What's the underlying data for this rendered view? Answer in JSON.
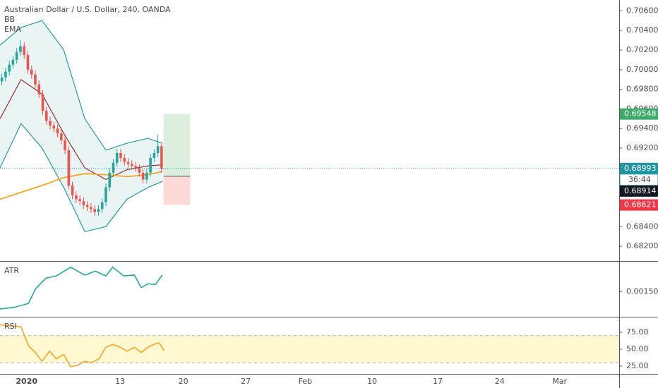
{
  "chart_data": [
    {
      "type": "candlestick",
      "title": "Australian Dollar / U.S. Dollar, 240, OANDA",
      "xlim": [
        0,
        100
      ],
      "xticks": [
        {
          "value": 4.3,
          "label": "2020"
        },
        {
          "value": 19.4,
          "label": "13"
        },
        {
          "value": 29.6,
          "label": "20"
        },
        {
          "value": 39.7,
          "label": "27"
        },
        {
          "value": 49.3,
          "label": "Feb"
        },
        {
          "value": 60.1,
          "label": "10"
        },
        {
          "value": 70.7,
          "label": "17"
        },
        {
          "value": 80.7,
          "label": "24"
        },
        {
          "value": 90.4,
          "label": "Mar"
        }
      ],
      "ylim": [
        0.6805,
        0.7071
      ],
      "yticks": [
        {
          "value": 0.682,
          "label": "0.68200"
        },
        {
          "value": 0.684,
          "label": "0.68400"
        },
        {
          "value": 0.686,
          "label": "0.68600"
        },
        {
          "value": 0.688,
          "label": "0.68800"
        },
        {
          "value": 0.69,
          "label": "0.69000"
        },
        {
          "value": 0.692,
          "label": "0.69200"
        },
        {
          "value": 0.694,
          "label": "0.69400"
        },
        {
          "value": 0.696,
          "label": "0.69600"
        },
        {
          "value": 0.698,
          "label": "0.69800"
        },
        {
          "value": 0.7,
          "label": "0.70000"
        },
        {
          "value": 0.702,
          "label": "0.70200"
        },
        {
          "value": 0.704,
          "label": "0.70400"
        },
        {
          "value": 0.706,
          "label": "0.70600"
        }
      ],
      "grid": true,
      "up_color": "#26a69a",
      "down_color": "#ef5350",
      "x": [
        0.3,
        0.9,
        1.5,
        2.1,
        2.7,
        3.3,
        3.9,
        4.5,
        5.1,
        5.7,
        6.3,
        6.9,
        7.5,
        8.1,
        8.7,
        9.3,
        9.9,
        10.5,
        11.1,
        11.7,
        12.3,
        12.9,
        13.5,
        14.1,
        14.7,
        15.3,
        15.9,
        16.5,
        17.1,
        17.7,
        18.3,
        18.9,
        19.5,
        20.1,
        20.7,
        21.3,
        21.9,
        22.5,
        23.1,
        23.7,
        24.3,
        24.9,
        25.5,
        26.1
      ],
      "open": [
        0.6988,
        0.6992,
        0.6998,
        0.7005,
        0.701,
        0.7018,
        0.7024,
        0.7015,
        0.7,
        0.6995,
        0.6985,
        0.6975,
        0.6958,
        0.6948,
        0.6943,
        0.694,
        0.6935,
        0.6928,
        0.6918,
        0.6882,
        0.6872,
        0.6868,
        0.6866,
        0.6862,
        0.686,
        0.6858,
        0.6855,
        0.6858,
        0.6865,
        0.688,
        0.6895,
        0.6905,
        0.6915,
        0.691,
        0.6906,
        0.6904,
        0.6902,
        0.69,
        0.6895,
        0.6888,
        0.6895,
        0.691,
        0.6915,
        0.6922
      ],
      "high": [
        0.6996,
        0.7002,
        0.7009,
        0.7014,
        0.7022,
        0.703,
        0.7028,
        0.7019,
        0.7004,
        0.6999,
        0.6989,
        0.6979,
        0.6962,
        0.6952,
        0.6947,
        0.6944,
        0.6939,
        0.6932,
        0.6922,
        0.6886,
        0.6876,
        0.6872,
        0.687,
        0.6866,
        0.6864,
        0.6862,
        0.6862,
        0.6869,
        0.6884,
        0.6899,
        0.6909,
        0.6919,
        0.6919,
        0.6914,
        0.691,
        0.6908,
        0.6906,
        0.6904,
        0.6899,
        0.6899,
        0.6914,
        0.6919,
        0.6934,
        0.6926
      ],
      "low": [
        0.6984,
        0.6988,
        0.6994,
        0.7001,
        0.7006,
        0.7014,
        0.7011,
        0.6996,
        0.6991,
        0.6981,
        0.6971,
        0.6954,
        0.6944,
        0.6939,
        0.6936,
        0.6931,
        0.6924,
        0.6914,
        0.6878,
        0.6868,
        0.6864,
        0.6862,
        0.6858,
        0.6856,
        0.6854,
        0.6851,
        0.6851,
        0.6854,
        0.6861,
        0.6876,
        0.6891,
        0.6901,
        0.6906,
        0.6902,
        0.69,
        0.6898,
        0.6896,
        0.6891,
        0.6884,
        0.6884,
        0.6891,
        0.6906,
        0.6911,
        0.6895
      ],
      "close": [
        0.6992,
        0.6998,
        0.7005,
        0.701,
        0.7018,
        0.7024,
        0.7015,
        0.7,
        0.6995,
        0.6985,
        0.6975,
        0.6958,
        0.6948,
        0.6943,
        0.694,
        0.6935,
        0.6928,
        0.6918,
        0.6882,
        0.6872,
        0.6868,
        0.6866,
        0.6862,
        0.686,
        0.6858,
        0.6855,
        0.6858,
        0.6865,
        0.688,
        0.6895,
        0.6905,
        0.6915,
        0.691,
        0.6906,
        0.6904,
        0.6902,
        0.69,
        0.6895,
        0.6888,
        0.6895,
        0.691,
        0.6915,
        0.6922,
        0.6899
      ],
      "indicators": [
        {
          "name": "BB",
          "color": "#2b9c96",
          "basis_color": "#9c2f2f",
          "x": [
            0,
            3.4,
            6.8,
            10.3,
            13.7,
            17.1,
            20.5,
            23.9,
            26.2
          ],
          "upper": [
            0.7025,
            0.7043,
            0.705,
            0.702,
            0.695,
            0.6918,
            0.6925,
            0.693,
            0.6925
          ],
          "basis": [
            0.695,
            0.699,
            0.6975,
            0.6935,
            0.69,
            0.6888,
            0.6898,
            0.6902,
            0.6903
          ],
          "lower": [
            0.69,
            0.6945,
            0.692,
            0.688,
            0.6835,
            0.684,
            0.6868,
            0.688,
            0.6886
          ]
        },
        {
          "name": "EMA",
          "color": "#f5a623",
          "x": [
            0,
            3.4,
            6.8,
            10.3,
            13.7,
            17.1,
            20.5,
            23.9,
            26.2
          ],
          "values": [
            0.6868,
            0.6875,
            0.6882,
            0.689,
            0.6894,
            0.6893,
            0.6891,
            0.6893,
            0.6896
          ]
        }
      ],
      "position": {
        "x": [
          26.4,
          30.7
        ],
        "target": 0.69548,
        "entry": 0.68914,
        "stop": 0.68621
      },
      "last": 0.68993,
      "countdown": "36:44"
    },
    {
      "type": "line",
      "title": "ATR",
      "color": "#26a69a",
      "ylim": [
        0.00118,
        0.00188
      ],
      "yticks": [
        {
          "value": 0.0015,
          "label": "0.00150"
        }
      ],
      "x": [
        0,
        2.3,
        4.6,
        5.7,
        7.4,
        9.1,
        11.4,
        13.7,
        15.4,
        17.1,
        18.2,
        20,
        21.7,
        22.8,
        23.9,
        25.1,
        26.2
      ],
      "values": [
        0.00128,
        0.0013,
        0.00135,
        0.00153,
        0.00167,
        0.0017,
        0.00181,
        0.00171,
        0.00176,
        0.0017,
        0.00181,
        0.0017,
        0.00171,
        0.00155,
        0.0016,
        0.00159,
        0.00171
      ]
    },
    {
      "type": "line",
      "title": "RSI",
      "color": "#f5a623",
      "ylim": [
        13.5,
        96.8
      ],
      "yticks": [
        {
          "value": 25,
          "label": "25.00"
        },
        {
          "value": 50,
          "label": "50.00"
        },
        {
          "value": 75,
          "label": "75.00"
        }
      ],
      "bands": [
        30,
        70
      ],
      "x": [
        0,
        2.3,
        3.4,
        4.6,
        5.7,
        6.8,
        8,
        9.1,
        10.3,
        11.4,
        12.5,
        13.7,
        14.8,
        16,
        17.1,
        18.2,
        19.4,
        20.5,
        21.7,
        22.8,
        23.9,
        25.1,
        25.7,
        26.5
      ],
      "values": [
        86,
        84,
        83,
        55,
        45,
        32,
        47,
        36,
        42,
        24,
        26,
        32,
        30,
        36,
        53,
        57,
        53,
        47,
        53,
        45,
        53,
        58,
        59,
        48
      ]
    }
  ]
}
